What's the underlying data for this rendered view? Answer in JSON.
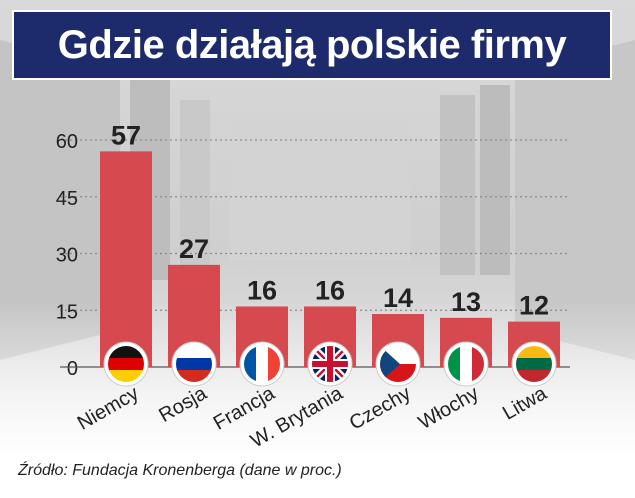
{
  "title": "Gdzie działają polskie firmy",
  "source": "Źródło: Fundacja Kronenberga (dane w proc.)",
  "colors": {
    "bar": "#d64a4f",
    "title_bg": "#1d2a6b",
    "text": "#222222"
  },
  "chart_data": {
    "type": "bar",
    "title": "Gdzie działają polskie firmy",
    "xlabel": "",
    "ylabel": "",
    "ylim": [
      0,
      60
    ],
    "yticks": [
      0,
      15,
      30,
      45,
      60
    ],
    "grid": true,
    "categories": [
      "Niemcy",
      "Rosja",
      "Francja",
      "W. Brytania",
      "Czechy",
      "Włochy",
      "Litwa"
    ],
    "values": [
      57,
      27,
      16,
      16,
      14,
      13,
      12
    ],
    "value_labels": [
      "57",
      "27",
      "16",
      "16",
      "14",
      "13",
      "12"
    ],
    "flag_icons": [
      "germany-flag-icon",
      "russia-flag-icon",
      "france-flag-icon",
      "uk-flag-icon",
      "czech-flag-icon",
      "italy-flag-icon",
      "lithuania-flag-icon"
    ]
  }
}
